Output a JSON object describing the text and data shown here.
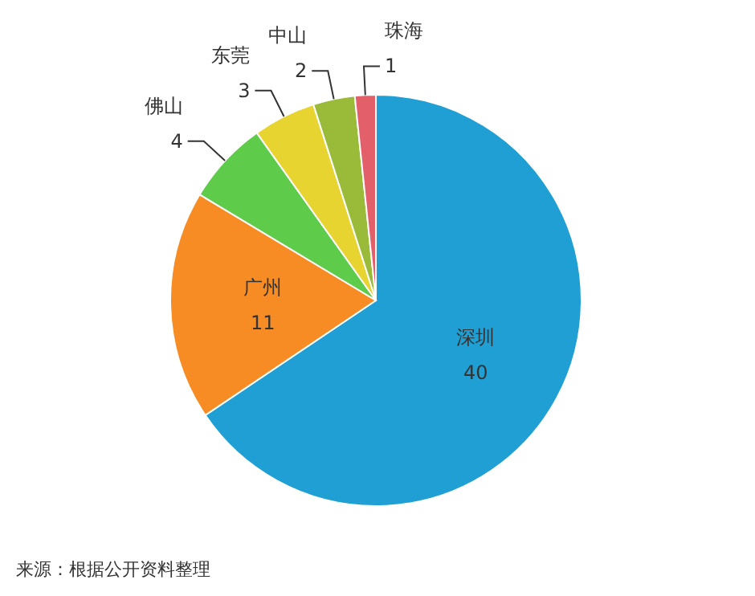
{
  "chart_data": {
    "type": "pie",
    "categories": [
      "深圳",
      "广州",
      "佛山",
      "东莞",
      "中山",
      "珠海"
    ],
    "values": [
      40,
      11,
      4,
      3,
      2,
      1
    ],
    "colors": [
      "#1f9fd4",
      "#f68c23",
      "#5ecb4a",
      "#e8d430",
      "#9aba3a",
      "#e3606a"
    ],
    "data_labels": true,
    "legend": false,
    "annotations": [
      "来源：根据公开资料整理"
    ]
  }
}
